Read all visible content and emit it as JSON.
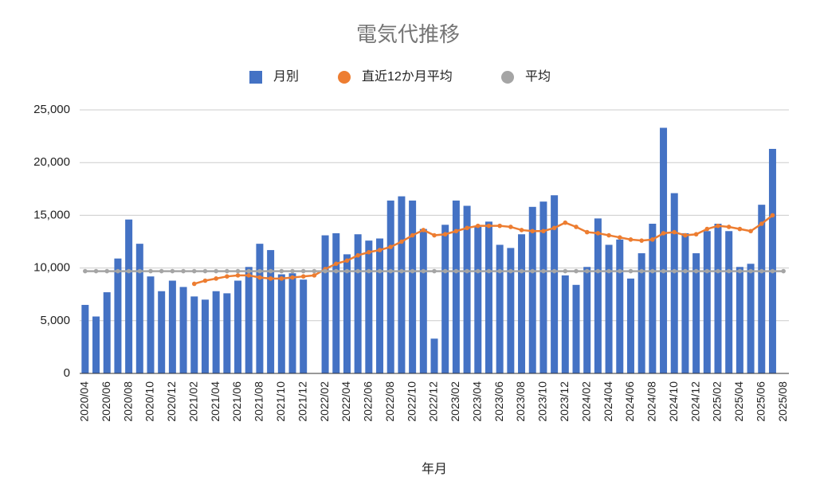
{
  "chart_data": {
    "type": "bar",
    "title": "電気代推移",
    "x_label": "年月",
    "categories": [
      "2020/04",
      null,
      "2020/06",
      null,
      "2020/08",
      null,
      "2020/10",
      null,
      "2020/12",
      null,
      "2021/02",
      null,
      "2021/04",
      null,
      "2021/06",
      null,
      "2021/08",
      null,
      "2021/10",
      null,
      "2021/12",
      null,
      "2022/02",
      null,
      "2022/04",
      null,
      "2022/06",
      null,
      "2022/08",
      null,
      "2022/10",
      null,
      "2022/12",
      null,
      "2023/02",
      null,
      "2023/04",
      null,
      "2023/06",
      null,
      "2023/08",
      null,
      "2023/10",
      null,
      "2023/12",
      null,
      "2024/02",
      null,
      "2024/04",
      null,
      "2024/06",
      null,
      "2024/08",
      null,
      "2024/10",
      null,
      "2024/12",
      null,
      "2025/02",
      null,
      "2025/04",
      null,
      "2025/06",
      null,
      "2025/08"
    ],
    "series": [
      {
        "name": "月別",
        "type": "bar",
        "color": "#4472c4",
        "values": [
          6500,
          5400,
          7700,
          10900,
          14600,
          12300,
          9200,
          7800,
          8800,
          8200,
          7300,
          7000,
          7800,
          7600,
          8800,
          10100,
          12300,
          11700,
          9400,
          9500,
          8900,
          null,
          13100,
          13300,
          11300,
          13200,
          12600,
          12800,
          16400,
          16800,
          16400,
          13700,
          3300,
          14100,
          16400,
          15900,
          13900,
          14400,
          12200,
          11900,
          13200,
          15800,
          16300,
          16900,
          9300,
          8400,
          10100,
          14700,
          12200,
          12700,
          9000,
          11400,
          14200,
          23300,
          17100,
          13300,
          11400,
          13500,
          14200,
          13500,
          10100,
          10400,
          16000,
          21300,
          null
        ]
      },
      {
        "name": "直近12か月平均",
        "type": "line",
        "color": "#ed7d31",
        "values": [
          null,
          null,
          null,
          null,
          null,
          null,
          null,
          null,
          null,
          null,
          8500,
          8800,
          9000,
          9200,
          9300,
          9300,
          9100,
          9000,
          9000,
          9100,
          9200,
          9300,
          9900,
          10400,
          10700,
          11200,
          11500,
          11700,
          12000,
          12500,
          13100,
          13600,
          13100,
          13200,
          13500,
          13800,
          14000,
          14000,
          14000,
          13900,
          13600,
          13500,
          13500,
          13800,
          14300,
          13900,
          13400,
          13300,
          13100,
          12900,
          12700,
          12600,
          12700,
          13300,
          13400,
          13100,
          13200,
          13700,
          14000,
          13900,
          13700,
          13500,
          14200,
          15000,
          null
        ]
      },
      {
        "name": "平均",
        "type": "line",
        "color": "#a5a5a5",
        "values": [
          9700,
          9700,
          9700,
          9700,
          9700,
          9700,
          9700,
          9700,
          9700,
          9700,
          9700,
          9700,
          9700,
          9700,
          9700,
          9700,
          9700,
          9700,
          9700,
          9700,
          9700,
          9700,
          9700,
          9700,
          9700,
          9700,
          9700,
          9700,
          9700,
          9700,
          9700,
          9700,
          9700,
          9700,
          9700,
          9700,
          9700,
          9700,
          9700,
          9700,
          9700,
          9700,
          9700,
          9700,
          9700,
          9700,
          9700,
          9700,
          9700,
          9700,
          9700,
          9700,
          9700,
          9700,
          9700,
          9700,
          9700,
          9700,
          9700,
          9700,
          9700,
          9700,
          9700,
          9700,
          9700
        ]
      }
    ],
    "ylim": [
      0,
      25000
    ],
    "yticks": [
      0,
      {
        "value": 5000,
        "label": "5,000"
      },
      {
        "value": 10000,
        "label": "10,000"
      },
      {
        "value": 15000,
        "label": "15,000"
      },
      {
        "value": 20000,
        "label": "20,000"
      },
      {
        "value": 25000,
        "label": "25,000"
      }
    ],
    "grid": true,
    "legend": "top"
  }
}
